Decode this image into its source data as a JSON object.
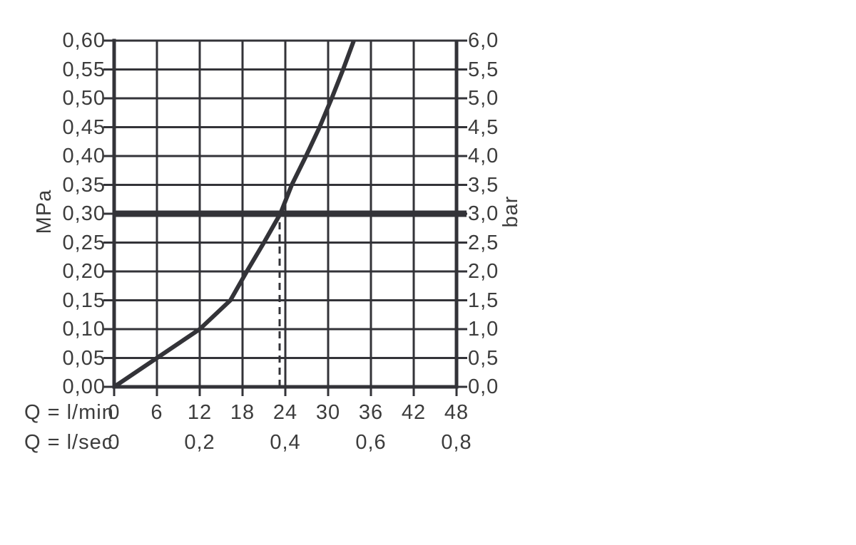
{
  "chart_data": {
    "type": "line",
    "title": "",
    "grid": true,
    "legend": "none",
    "axes": {
      "y_left": {
        "unit_label": "MPa",
        "min": 0,
        "max": 0.6,
        "step": 0.05,
        "ticks": [
          {
            "v": 0.6,
            "label": "0,60"
          },
          {
            "v": 0.55,
            "label": "0,55"
          },
          {
            "v": 0.5,
            "label": "0,50"
          },
          {
            "v": 0.45,
            "label": "0,45"
          },
          {
            "v": 0.4,
            "label": "0,40"
          },
          {
            "v": 0.35,
            "label": "0,35"
          },
          {
            "v": 0.3,
            "label": "0,30"
          },
          {
            "v": 0.25,
            "label": "0,25"
          },
          {
            "v": 0.2,
            "label": "0,20"
          },
          {
            "v": 0.15,
            "label": "0,15"
          },
          {
            "v": 0.1,
            "label": "0,10"
          },
          {
            "v": 0.05,
            "label": "0,05"
          },
          {
            "v": 0.0,
            "label": "0,00"
          }
        ]
      },
      "y_right": {
        "unit_label": "bar",
        "min": 0,
        "max": 6,
        "step": 0.5,
        "ticks": [
          {
            "v": 0.6,
            "label": "6,0"
          },
          {
            "v": 0.55,
            "label": "5,5"
          },
          {
            "v": 0.5,
            "label": "5,0"
          },
          {
            "v": 0.45,
            "label": "4,5"
          },
          {
            "v": 0.4,
            "label": "4,0"
          },
          {
            "v": 0.35,
            "label": "3,5"
          },
          {
            "v": 0.3,
            "label": "3,0"
          },
          {
            "v": 0.25,
            "label": "2,5"
          },
          {
            "v": 0.2,
            "label": "2,0"
          },
          {
            "v": 0.15,
            "label": "1,5"
          },
          {
            "v": 0.1,
            "label": "1,0"
          },
          {
            "v": 0.05,
            "label": "0,5"
          },
          {
            "v": 0.0,
            "label": "0,0"
          }
        ]
      },
      "x_lmin": {
        "unit_label": "Q = l/min",
        "min": 0,
        "max": 48,
        "step": 6,
        "ticks": [
          {
            "v": 0,
            "label": "0"
          },
          {
            "v": 6,
            "label": "6"
          },
          {
            "v": 12,
            "label": "12"
          },
          {
            "v": 18,
            "label": "18"
          },
          {
            "v": 24,
            "label": "24"
          },
          {
            "v": 30,
            "label": "30"
          },
          {
            "v": 36,
            "label": "36"
          },
          {
            "v": 42,
            "label": "42"
          },
          {
            "v": 48,
            "label": "48"
          }
        ]
      },
      "x_lsec": {
        "unit_label": "Q = l/sec",
        "ticks": [
          {
            "v": 0,
            "label": "0"
          },
          {
            "v": 12,
            "label": "0,2"
          },
          {
            "v": 24,
            "label": "0,4"
          },
          {
            "v": 36,
            "label": "0,6"
          },
          {
            "v": 48,
            "label": "0,8"
          }
        ]
      }
    },
    "series": [
      {
        "name": "pressure-flow-curve",
        "points_lmin_mpa": [
          [
            0,
            0.0
          ],
          [
            6,
            0.05
          ],
          [
            12,
            0.1
          ],
          [
            16.3,
            0.15
          ],
          [
            18.6,
            0.2
          ],
          [
            21,
            0.25
          ],
          [
            23.3,
            0.3
          ],
          [
            24.9,
            0.35
          ],
          [
            26.9,
            0.4
          ],
          [
            28.8,
            0.45
          ],
          [
            30.5,
            0.5
          ],
          [
            32.1,
            0.55
          ],
          [
            33.6,
            0.6
          ]
        ]
      }
    ],
    "reference_lines": [
      {
        "name": "operating-pressure-line",
        "orientation": "horizontal",
        "y_mpa": 0.3,
        "style": "solid-thick"
      },
      {
        "name": "operating-flow-line",
        "orientation": "vertical",
        "x_lmin": 23.2,
        "from_mpa": 0.0,
        "to_mpa": 0.3,
        "style": "dashed"
      }
    ],
    "colors": {
      "stroke": "#333338",
      "text": "#3c3c3c",
      "background": "#ffffff"
    }
  }
}
